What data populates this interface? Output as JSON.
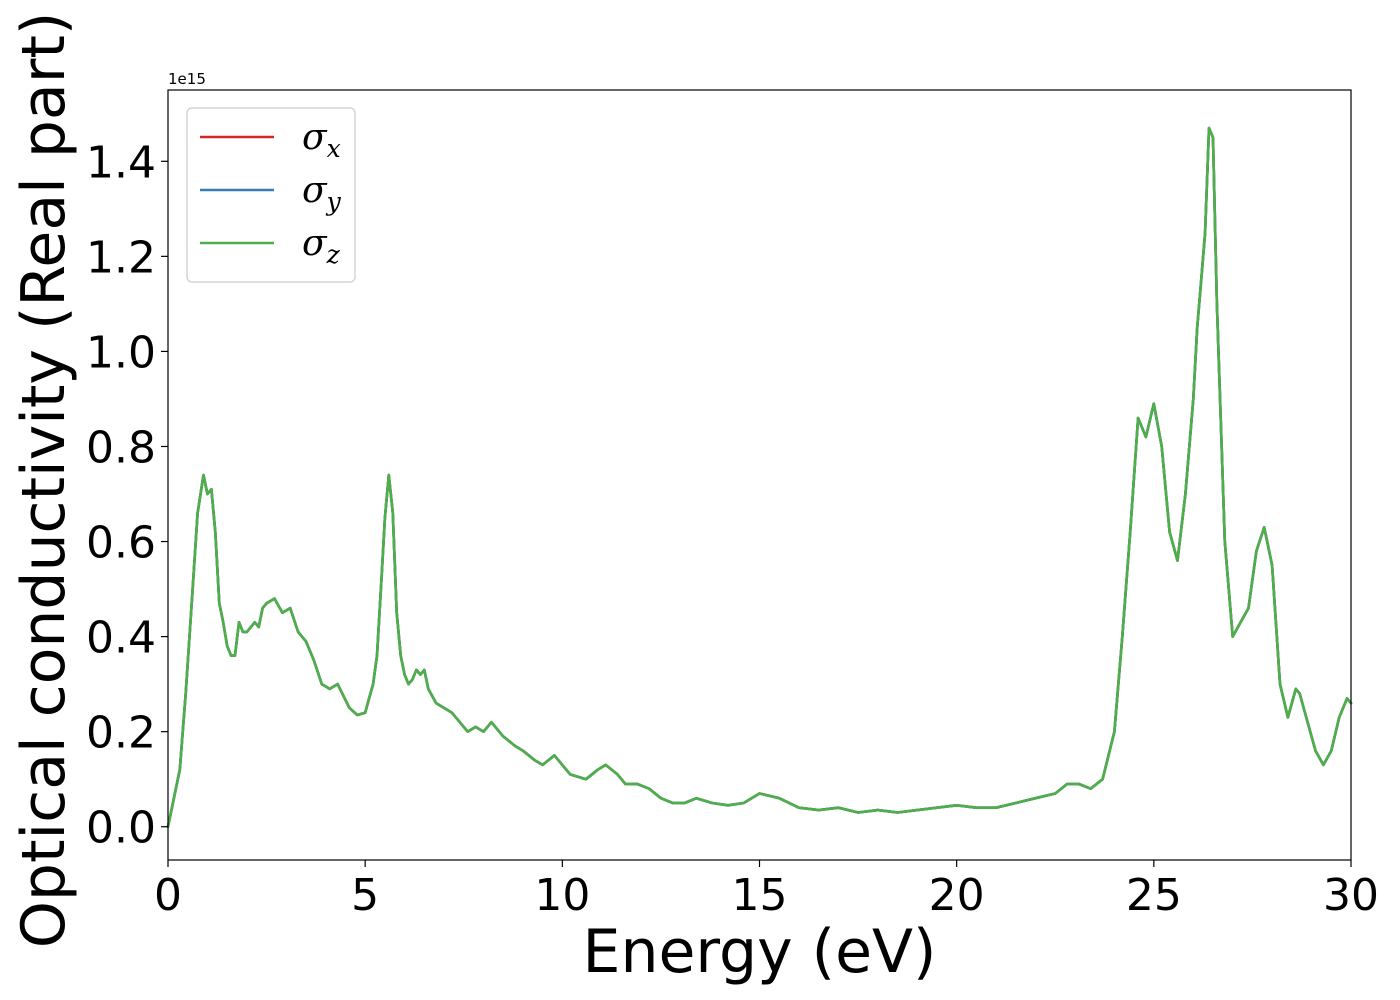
{
  "chart_data": {
    "type": "line",
    "xlabel": "Energy (eV)",
    "ylabel": "Optical conductivity (Real part)",
    "y_offset_label": "1e15",
    "y_scale_factor": 1000000000000000.0,
    "xlim": [
      0,
      30
    ],
    "ylim": [
      -0.07,
      1.55
    ],
    "x_ticks": [
      0,
      5,
      10,
      15,
      20,
      25,
      30
    ],
    "x_tick_labels": [
      "0",
      "5",
      "10",
      "15",
      "20",
      "25",
      "30"
    ],
    "y_ticks": [
      0.0,
      0.2,
      0.4,
      0.6,
      0.8,
      1.0,
      1.2,
      1.4
    ],
    "y_tick_labels": [
      "0.0",
      "0.2",
      "0.4",
      "0.6",
      "0.8",
      "1.0",
      "1.2",
      "1.4"
    ],
    "grid": false,
    "legend_position": "top-left",
    "x": [
      0,
      0.15,
      0.3,
      0.45,
      0.6,
      0.75,
      0.9,
      1.0,
      1.1,
      1.2,
      1.3,
      1.4,
      1.5,
      1.6,
      1.7,
      1.8,
      1.9,
      2.0,
      2.2,
      2.3,
      2.4,
      2.5,
      2.7,
      2.9,
      3.1,
      3.3,
      3.5,
      3.7,
      3.9,
      4.1,
      4.3,
      4.6,
      4.8,
      5.0,
      5.1,
      5.2,
      5.3,
      5.4,
      5.5,
      5.6,
      5.7,
      5.8,
      5.9,
      6.0,
      6.1,
      6.2,
      6.3,
      6.4,
      6.5,
      6.6,
      6.8,
      7.0,
      7.2,
      7.4,
      7.6,
      7.8,
      8.0,
      8.2,
      8.5,
      8.8,
      9.0,
      9.3,
      9.5,
      9.8,
      10.2,
      10.6,
      10.9,
      11.1,
      11.4,
      11.6,
      11.9,
      12.2,
      12.5,
      12.8,
      13.1,
      13.4,
      13.8,
      14.2,
      14.6,
      15.0,
      15.5,
      16.0,
      16.5,
      17.0,
      17.5,
      18.0,
      18.5,
      19.0,
      19.5,
      20.0,
      20.5,
      21.0,
      21.5,
      22.0,
      22.5,
      22.8,
      23.1,
      23.4,
      23.7,
      24.0,
      24.2,
      24.4,
      24.6,
      24.8,
      25.0,
      25.2,
      25.4,
      25.6,
      25.8,
      26.0,
      26.1,
      26.2,
      26.3,
      26.4,
      26.5,
      26.6,
      26.8,
      27.0,
      27.2,
      27.4,
      27.6,
      27.8,
      28.0,
      28.2,
      28.4,
      28.6,
      28.7,
      28.9,
      29.1,
      29.3,
      29.5,
      29.7,
      29.9,
      30.0
    ],
    "series": [
      {
        "name": "σx",
        "base": "σ",
        "sub": "x",
        "color": "#d62728",
        "y": [
          0.0,
          0.06,
          0.12,
          0.28,
          0.47,
          0.66,
          0.74,
          0.7,
          0.71,
          0.62,
          0.47,
          0.43,
          0.38,
          0.36,
          0.36,
          0.43,
          0.41,
          0.41,
          0.43,
          0.42,
          0.46,
          0.47,
          0.48,
          0.45,
          0.46,
          0.41,
          0.39,
          0.35,
          0.3,
          0.29,
          0.3,
          0.25,
          0.235,
          0.24,
          0.27,
          0.3,
          0.36,
          0.5,
          0.65,
          0.74,
          0.66,
          0.45,
          0.36,
          0.32,
          0.3,
          0.31,
          0.33,
          0.32,
          0.33,
          0.29,
          0.26,
          0.25,
          0.24,
          0.22,
          0.2,
          0.21,
          0.2,
          0.22,
          0.19,
          0.17,
          0.16,
          0.14,
          0.13,
          0.15,
          0.11,
          0.1,
          0.12,
          0.13,
          0.11,
          0.09,
          0.09,
          0.08,
          0.06,
          0.05,
          0.05,
          0.06,
          0.05,
          0.045,
          0.05,
          0.07,
          0.06,
          0.04,
          0.035,
          0.04,
          0.03,
          0.035,
          0.03,
          0.035,
          0.04,
          0.045,
          0.04,
          0.04,
          0.05,
          0.06,
          0.07,
          0.09,
          0.09,
          0.08,
          0.1,
          0.2,
          0.4,
          0.62,
          0.86,
          0.82,
          0.89,
          0.8,
          0.62,
          0.56,
          0.7,
          0.9,
          1.05,
          1.15,
          1.25,
          1.47,
          1.45,
          1.1,
          0.6,
          0.4,
          0.43,
          0.46,
          0.58,
          0.63,
          0.55,
          0.3,
          0.23,
          0.29,
          0.28,
          0.22,
          0.16,
          0.13,
          0.16,
          0.23,
          0.27,
          0.26
        ]
      },
      {
        "name": "σy",
        "base": "σ",
        "sub": "y",
        "color": "#377eb8",
        "y": [
          0.0,
          0.06,
          0.12,
          0.28,
          0.47,
          0.66,
          0.74,
          0.7,
          0.71,
          0.62,
          0.47,
          0.43,
          0.38,
          0.36,
          0.36,
          0.43,
          0.41,
          0.41,
          0.43,
          0.42,
          0.46,
          0.47,
          0.48,
          0.45,
          0.46,
          0.41,
          0.39,
          0.35,
          0.3,
          0.29,
          0.3,
          0.25,
          0.235,
          0.24,
          0.27,
          0.3,
          0.36,
          0.5,
          0.65,
          0.74,
          0.66,
          0.45,
          0.36,
          0.32,
          0.3,
          0.31,
          0.33,
          0.32,
          0.33,
          0.29,
          0.26,
          0.25,
          0.24,
          0.22,
          0.2,
          0.21,
          0.2,
          0.22,
          0.19,
          0.17,
          0.16,
          0.14,
          0.13,
          0.15,
          0.11,
          0.1,
          0.12,
          0.13,
          0.11,
          0.09,
          0.09,
          0.08,
          0.06,
          0.05,
          0.05,
          0.06,
          0.05,
          0.045,
          0.05,
          0.07,
          0.06,
          0.04,
          0.035,
          0.04,
          0.03,
          0.035,
          0.03,
          0.035,
          0.04,
          0.045,
          0.04,
          0.04,
          0.05,
          0.06,
          0.07,
          0.09,
          0.09,
          0.08,
          0.1,
          0.2,
          0.4,
          0.62,
          0.86,
          0.82,
          0.89,
          0.8,
          0.62,
          0.56,
          0.7,
          0.9,
          1.05,
          1.15,
          1.25,
          1.47,
          1.45,
          1.1,
          0.6,
          0.4,
          0.43,
          0.46,
          0.58,
          0.63,
          0.55,
          0.3,
          0.23,
          0.29,
          0.28,
          0.22,
          0.16,
          0.13,
          0.16,
          0.23,
          0.27,
          0.26
        ]
      },
      {
        "name": "σz",
        "base": "σ",
        "sub": "z",
        "color": "#4daf4a",
        "y": [
          0.0,
          0.06,
          0.12,
          0.28,
          0.47,
          0.66,
          0.74,
          0.7,
          0.71,
          0.62,
          0.47,
          0.43,
          0.38,
          0.36,
          0.36,
          0.43,
          0.41,
          0.41,
          0.43,
          0.42,
          0.46,
          0.47,
          0.48,
          0.45,
          0.46,
          0.41,
          0.39,
          0.35,
          0.3,
          0.29,
          0.3,
          0.25,
          0.235,
          0.24,
          0.27,
          0.3,
          0.36,
          0.5,
          0.65,
          0.74,
          0.66,
          0.45,
          0.36,
          0.32,
          0.3,
          0.31,
          0.33,
          0.32,
          0.33,
          0.29,
          0.26,
          0.25,
          0.24,
          0.22,
          0.2,
          0.21,
          0.2,
          0.22,
          0.19,
          0.17,
          0.16,
          0.14,
          0.13,
          0.15,
          0.11,
          0.1,
          0.12,
          0.13,
          0.11,
          0.09,
          0.09,
          0.08,
          0.06,
          0.05,
          0.05,
          0.06,
          0.05,
          0.045,
          0.05,
          0.07,
          0.06,
          0.04,
          0.035,
          0.04,
          0.03,
          0.035,
          0.03,
          0.035,
          0.04,
          0.045,
          0.04,
          0.04,
          0.05,
          0.06,
          0.07,
          0.09,
          0.09,
          0.08,
          0.1,
          0.2,
          0.4,
          0.62,
          0.86,
          0.82,
          0.89,
          0.8,
          0.62,
          0.56,
          0.7,
          0.9,
          1.05,
          1.15,
          1.25,
          1.47,
          1.45,
          1.1,
          0.6,
          0.4,
          0.43,
          0.46,
          0.58,
          0.63,
          0.55,
          0.3,
          0.23,
          0.29,
          0.28,
          0.22,
          0.16,
          0.13,
          0.16,
          0.23,
          0.27,
          0.26
        ]
      }
    ]
  }
}
